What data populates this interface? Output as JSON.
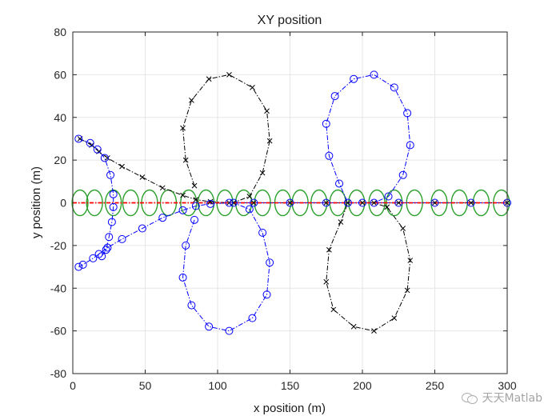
{
  "chart_data": {
    "type": "line",
    "title": "XY position",
    "xlabel": "x position (m)",
    "ylabel": "y position (m)",
    "xlim": [
      0,
      300
    ],
    "ylim": [
      -80,
      80
    ],
    "xticks": [
      "0",
      "50",
      "100",
      "150",
      "200",
      "250",
      "300"
    ],
    "yticks": [
      "-80",
      "-60",
      "-40",
      "-20",
      "0",
      "20",
      "40",
      "60",
      "80"
    ],
    "grid": true,
    "legend": "none",
    "colors": {
      "black": "#000000",
      "blue": "#0000ff",
      "red": "#ff0000",
      "green": "#2ca02c",
      "grid": "#e6e6e6"
    },
    "series": [
      {
        "color": "black",
        "style": "dash-dot",
        "marker": "x",
        "values": [
          [
            5,
            30
          ],
          [
            13,
            27
          ],
          [
            18,
            24
          ],
          [
            24,
            21
          ],
          [
            34,
            17
          ],
          [
            48,
            12
          ],
          [
            62,
            7
          ],
          [
            76,
            3.5
          ],
          [
            85,
            1.5
          ],
          [
            95,
            0.5
          ],
          [
            108,
            0
          ],
          [
            125,
            0
          ],
          [
            150,
            0
          ],
          [
            175,
            0
          ],
          [
            200,
            0
          ],
          [
            225,
            0
          ],
          [
            250,
            0
          ],
          [
            275,
            0
          ],
          [
            300,
            0
          ]
        ]
      },
      {
        "color": "black",
        "style": "dash-dot",
        "marker": "x",
        "values": [
          [
            84,
            8
          ],
          [
            78,
            20
          ],
          [
            76,
            35
          ],
          [
            82,
            48
          ],
          [
            94,
            58
          ],
          [
            108,
            60
          ],
          [
            124,
            54
          ],
          [
            134,
            43
          ],
          [
            136,
            29
          ],
          [
            131,
            14
          ],
          [
            122,
            3
          ],
          [
            111,
            0
          ],
          [
            190,
            0
          ],
          [
            185,
            -9
          ],
          [
            177,
            -22
          ],
          [
            175,
            -37
          ],
          [
            180,
            -50
          ],
          [
            194,
            -58
          ],
          [
            208,
            -60
          ],
          [
            222,
            -54
          ],
          [
            231,
            -41
          ],
          [
            233,
            -27
          ],
          [
            228,
            -12
          ],
          [
            217,
            -2
          ],
          [
            208,
            0
          ]
        ]
      },
      {
        "color": "blue",
        "style": "dash-dot",
        "marker": "o",
        "values": [
          [
            4,
            -30
          ],
          [
            7,
            -29
          ],
          [
            14,
            -26
          ],
          [
            18,
            -24
          ],
          [
            24,
            -21
          ],
          [
            34,
            -17
          ],
          [
            48,
            -12
          ],
          [
            62,
            -7
          ],
          [
            76,
            -3.5
          ],
          [
            85,
            -1.5
          ],
          [
            95,
            -0.5
          ],
          [
            108,
            0
          ],
          [
            125,
            0
          ],
          [
            150,
            0
          ],
          [
            175,
            0
          ],
          [
            200,
            0
          ],
          [
            225,
            0
          ],
          [
            250,
            0
          ],
          [
            275,
            0
          ],
          [
            300,
            0
          ]
        ]
      },
      {
        "color": "blue",
        "style": "dash-dot",
        "marker": "o",
        "values": [
          [
            84,
            -8
          ],
          [
            78,
            -20
          ],
          [
            76,
            -35
          ],
          [
            82,
            -48
          ],
          [
            94,
            -58
          ],
          [
            108,
            -60
          ],
          [
            124,
            -54
          ],
          [
            134,
            -43
          ],
          [
            136,
            -28
          ],
          [
            131,
            -14
          ],
          [
            122,
            -3
          ],
          [
            111,
            0
          ],
          [
            190,
            0
          ],
          [
            184,
            9
          ],
          [
            177,
            22
          ],
          [
            175,
            37
          ],
          [
            181,
            50
          ],
          [
            194,
            58
          ],
          [
            208,
            60
          ],
          [
            222,
            54
          ],
          [
            231,
            42
          ],
          [
            233,
            27
          ],
          [
            228,
            13
          ],
          [
            218,
            3
          ],
          [
            208,
            0
          ]
        ]
      },
      {
        "color": "blue",
        "style": "dash-dot",
        "marker": "o",
        "values": [
          [
            4,
            30
          ],
          [
            12,
            28
          ],
          [
            17,
            25
          ],
          [
            22,
            21
          ],
          [
            26,
            13
          ],
          [
            28,
            4
          ],
          [
            28,
            -2
          ],
          [
            27,
            -9
          ],
          [
            25,
            -16
          ],
          [
            23,
            -22
          ],
          [
            20,
            -25
          ]
        ]
      },
      {
        "color": "red",
        "style": "dash-dot",
        "marker": "none",
        "values": [
          [
            0,
            0
          ],
          [
            300,
            0
          ]
        ]
      }
    ],
    "ellipses": {
      "color": "green",
      "centers_x": [
        5,
        15,
        28,
        40,
        53,
        66,
        80,
        92,
        105,
        118,
        131,
        145,
        157,
        170,
        183,
        196,
        210,
        222,
        236,
        253,
        267,
        282,
        296
      ],
      "rx": 5.5,
      "ry": 6
    }
  },
  "watermark": {
    "text": "天天Matlab"
  }
}
